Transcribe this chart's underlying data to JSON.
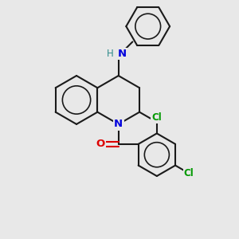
{
  "bg_color": "#e8e8e8",
  "bond_color": "#1a1a1a",
  "N_color": "#0000dd",
  "H_color": "#2e8b8b",
  "O_color": "#dd0000",
  "Cl_color": "#009900",
  "lw": 1.5,
  "figsize": [
    3.0,
    3.0
  ],
  "dpi": 100,
  "xlim": [
    -2.8,
    2.8
  ],
  "ylim": [
    -3.2,
    2.8
  ]
}
